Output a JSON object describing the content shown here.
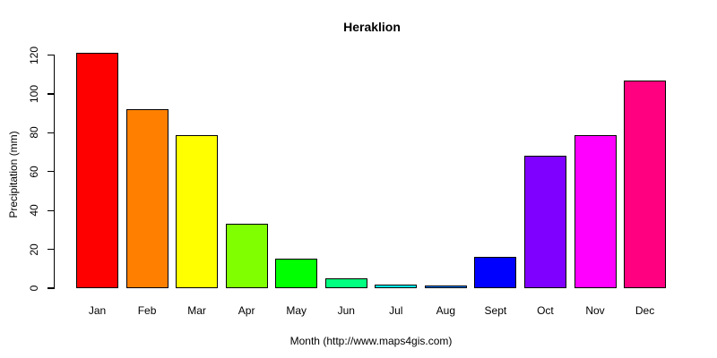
{
  "chart_data": {
    "type": "bar",
    "title": "Heraklion",
    "xlabel": "Month (http://www.maps4gis.com)",
    "ylabel": "Precipitation (mm)",
    "categories": [
      "Jan",
      "Feb",
      "Mar",
      "Apr",
      "May",
      "Jun",
      "Jul",
      "Aug",
      "Sept",
      "Oct",
      "Nov",
      "Dec"
    ],
    "values": [
      121,
      92,
      79,
      33,
      15,
      5,
      2,
      1,
      16,
      68,
      79,
      107
    ],
    "bar_colors": [
      "#FF0000",
      "#FF8000",
      "#FFFF00",
      "#80FF00",
      "#00FF00",
      "#00FF80",
      "#00FFFF",
      "#0080FF",
      "#0000FF",
      "#8000FF",
      "#FF00FF",
      "#FF0080"
    ],
    "bar_border_color": "#000000",
    "axis_color": "#000000",
    "background_color": "#FFFFFF",
    "yticks": [
      0,
      20,
      40,
      60,
      80,
      100,
      120
    ],
    "ylim": [
      0,
      120
    ],
    "grid": false,
    "legend": "none"
  }
}
